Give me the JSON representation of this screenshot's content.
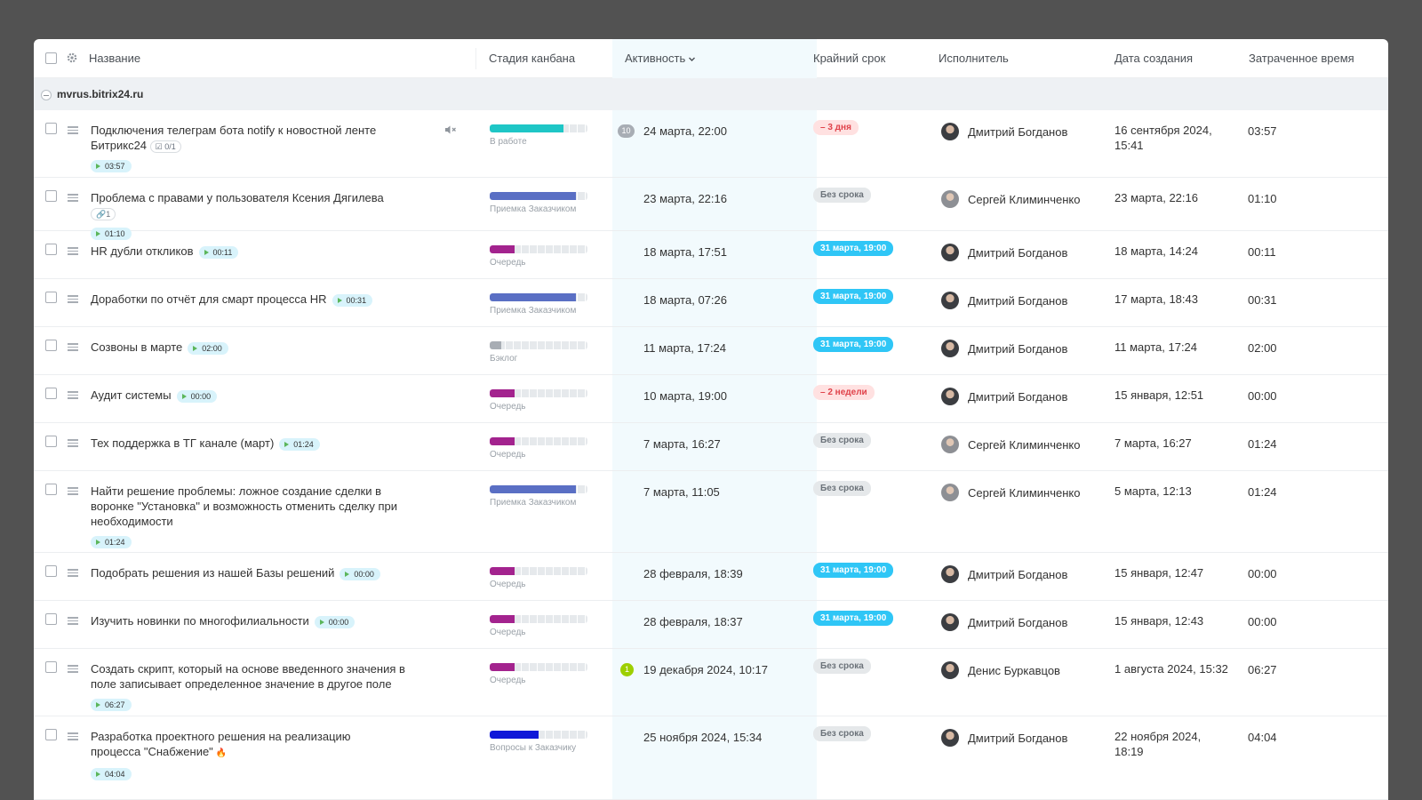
{
  "header": {
    "name": "Название",
    "stage": "Стадия канбана",
    "activity": "Активность",
    "deadline": "Крайний срок",
    "assignee": "Исполнитель",
    "created": "Дата создания",
    "spent": "Затраченное время"
  },
  "group": {
    "name": "mvrus.bitrix24.ru"
  },
  "colors": {
    "teal": "#1ec6c6",
    "customer_acceptance": "#5a6fc4",
    "queue": "#a3238e",
    "backlog": "#a8adb4",
    "customer_questions": "#1018d8",
    "deadline_blue": "#2fc6f6",
    "overdue_red": "#e0424a"
  },
  "rows": [
    {
      "title": "Подключения телеграм бота notify к новостной ленте Битрикс24",
      "chip": "☑ 0/1",
      "timer": "03:57",
      "stage": "В работе",
      "stage_level": 0.75,
      "stage_color": "#1ec6c6",
      "counter": "10",
      "activity": "24 марта, 22:00",
      "deadline": "– 3 дня",
      "deadline_type": "over",
      "assignee": "Дмитрий Богданов",
      "created": "16 сентября 2024, 15:41",
      "spent": "03:57"
    },
    {
      "title": "Проблема с правами у пользователя Ксения Дягилева",
      "chip": "🔗1",
      "timer": "01:10",
      "stage": "Приемка Заказчиком",
      "stage_level": 0.88,
      "stage_color": "#5a6fc4",
      "activity": "23 марта, 22:16",
      "deadline": "Без срока",
      "deadline_type": "none",
      "assignee": "Сергей Климинченко",
      "created": "23 марта, 22:16",
      "spent": "01:10"
    },
    {
      "title": "HR дубли откликов",
      "timer": "00:11",
      "stage": "Очередь",
      "stage_level": 0.25,
      "stage_color": "#a3238e",
      "activity": "18 марта, 17:51",
      "deadline": "31 марта, 19:00",
      "deadline_type": "date",
      "assignee": "Дмитрий Богданов",
      "created": "18 марта, 14:24",
      "spent": "00:11"
    },
    {
      "title": "Доработки по отчёт для смарт процесса HR",
      "timer": "00:31",
      "stage": "Приемка Заказчиком",
      "stage_level": 0.88,
      "stage_color": "#5a6fc4",
      "activity": "18 марта, 07:26",
      "deadline": "31 марта, 19:00",
      "deadline_type": "date",
      "assignee": "Дмитрий Богданов",
      "created": "17 марта, 18:43",
      "spent": "00:31"
    },
    {
      "title": "Созвоны в марте",
      "timer": "02:00",
      "stage": "Бэклог",
      "stage_level": 0.12,
      "stage_color": "#a8adb4",
      "activity": "11 марта, 17:24",
      "deadline": "31 марта, 19:00",
      "deadline_type": "date",
      "assignee": "Дмитрий Богданов",
      "created": "11 марта, 17:24",
      "spent": "02:00"
    },
    {
      "title": "Аудит системы",
      "timer": "00:00",
      "stage": "Очередь",
      "stage_level": 0.25,
      "stage_color": "#a3238e",
      "activity": "10 марта, 19:00",
      "deadline": "– 2 недели",
      "deadline_type": "over",
      "assignee": "Дмитрий Богданов",
      "created": "15 января, 12:51",
      "spent": "00:00"
    },
    {
      "title": "Тех поддержка в ТГ канале (март)",
      "timer": "01:24",
      "stage": "Очередь",
      "stage_level": 0.25,
      "stage_color": "#a3238e",
      "activity": "7 марта, 16:27",
      "deadline": "Без срока",
      "deadline_type": "none",
      "assignee": "Сергей Климинченко",
      "created": "7 марта, 16:27",
      "spent": "01:24"
    },
    {
      "title": "Найти решение проблемы: ложное создание сделки в воронке \"Установка\" и возможность отменить сделку при необходимости",
      "timer": "01:24",
      "stage": "Приемка Заказчиком",
      "stage_level": 0.88,
      "stage_color": "#5a6fc4",
      "activity": "7 марта, 11:05",
      "deadline": "Без срока",
      "deadline_type": "none",
      "assignee": "Сергей Климинченко",
      "created": "5 марта, 12:13",
      "spent": "01:24"
    },
    {
      "title": "Подобрать решения из нашей Базы решений",
      "timer": "00:00",
      "stage": "Очередь",
      "stage_level": 0.25,
      "stage_color": "#a3238e",
      "activity": "28 февраля, 18:39",
      "deadline": "31 марта, 19:00",
      "deadline_type": "date",
      "assignee": "Дмитрий Богданов",
      "created": "15 января, 12:47",
      "spent": "00:00"
    },
    {
      "title": "Изучить новинки по многофилиальности",
      "timer": "00:00",
      "stage": "Очередь",
      "stage_level": 0.25,
      "stage_color": "#a3238e",
      "activity": "28 февраля, 18:37",
      "deadline": "31 марта, 19:00",
      "deadline_type": "date",
      "assignee": "Дмитрий Богданов",
      "created": "15 января, 12:43",
      "spent": "00:00"
    },
    {
      "title": "Создать скрипт, который на основе введенного значения в поле записывает определенное значение в другое поле",
      "timer": "06:27",
      "stage": "Очередь",
      "stage_level": 0.25,
      "stage_color": "#a3238e",
      "counter": "1",
      "activity": "19 декабря 2024, 10:17",
      "deadline": "Без срока",
      "deadline_type": "none",
      "assignee": "Денис Буркавцов",
      "created": "1 августа 2024, 15:32",
      "spent": "06:27"
    },
    {
      "title": "Разработка проектного решения на реализацию процесса \"Снабжение\"",
      "flame": "🔥",
      "timer": "04:04",
      "stage": "Вопросы к Заказчику",
      "stage_level": 0.5,
      "stage_color": "#1018d8",
      "activity": "25 ноября 2024, 15:34",
      "deadline": "Без срока",
      "deadline_type": "none",
      "assignee": "Дмитрий Богданов",
      "created": "22 ноября 2024, 18:19",
      "spent": "04:04"
    }
  ]
}
